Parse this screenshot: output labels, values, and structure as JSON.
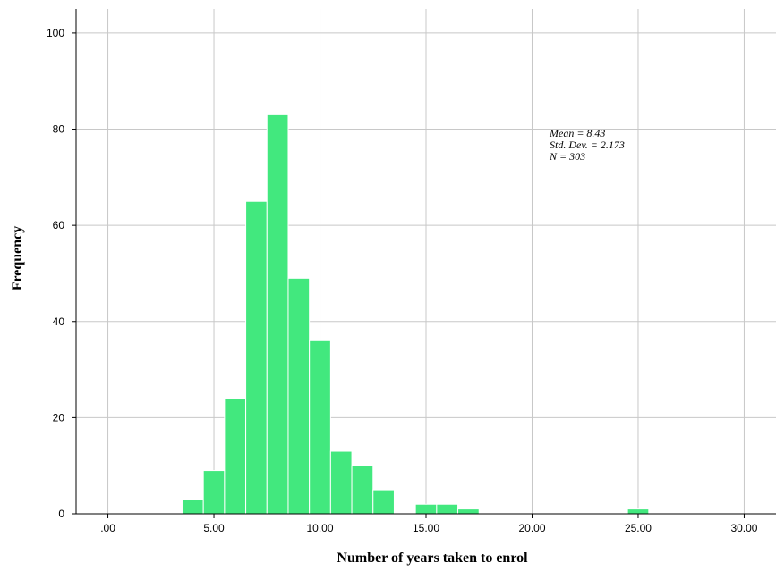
{
  "chart_data": {
    "type": "bar",
    "subtype": "histogram",
    "xlabel": "Number of years taken to enrol",
    "ylabel": "Frequency",
    "xlim": [
      -1.5,
      31.5
    ],
    "ylim": [
      0,
      105
    ],
    "grid": true,
    "bin_width": 1,
    "x_ticks": [
      {
        "value": 0,
        "label": ".00"
      },
      {
        "value": 5,
        "label": "5.00"
      },
      {
        "value": 10,
        "label": "10.00"
      },
      {
        "value": 15,
        "label": "15.00"
      },
      {
        "value": 20,
        "label": "20.00"
      },
      {
        "value": 25,
        "label": "25.00"
      },
      {
        "value": 30,
        "label": "30.00"
      }
    ],
    "y_ticks": [
      {
        "value": 0,
        "label": "0"
      },
      {
        "value": 20,
        "label": "20"
      },
      {
        "value": 40,
        "label": "40"
      },
      {
        "value": 60,
        "label": "60"
      },
      {
        "value": 80,
        "label": "80"
      },
      {
        "value": 100,
        "label": "100"
      }
    ],
    "bins": [
      {
        "x0": 3.5,
        "x1": 4.5,
        "count": 3
      },
      {
        "x0": 4.5,
        "x1": 5.5,
        "count": 9
      },
      {
        "x0": 5.5,
        "x1": 6.5,
        "count": 24
      },
      {
        "x0": 6.5,
        "x1": 7.5,
        "count": 65
      },
      {
        "x0": 7.5,
        "x1": 8.5,
        "count": 83
      },
      {
        "x0": 8.5,
        "x1": 9.5,
        "count": 49
      },
      {
        "x0": 9.5,
        "x1": 10.5,
        "count": 36
      },
      {
        "x0": 10.5,
        "x1": 11.5,
        "count": 13
      },
      {
        "x0": 11.5,
        "x1": 12.5,
        "count": 10
      },
      {
        "x0": 12.5,
        "x1": 13.5,
        "count": 5
      },
      {
        "x0": 14.5,
        "x1": 15.5,
        "count": 2
      },
      {
        "x0": 15.5,
        "x1": 16.5,
        "count": 2
      },
      {
        "x0": 16.5,
        "x1": 17.5,
        "count": 1
      },
      {
        "x0": 24.5,
        "x1": 25.5,
        "count": 1
      }
    ],
    "annotations": [
      "Mean = 8.43",
      "Std. Dev. = 2.173",
      "N = 303"
    ],
    "colors": {
      "bar": "#42e87e",
      "bar_edge": "#ffffff",
      "grid": "#c8c8c8",
      "axis": "#000000"
    }
  }
}
